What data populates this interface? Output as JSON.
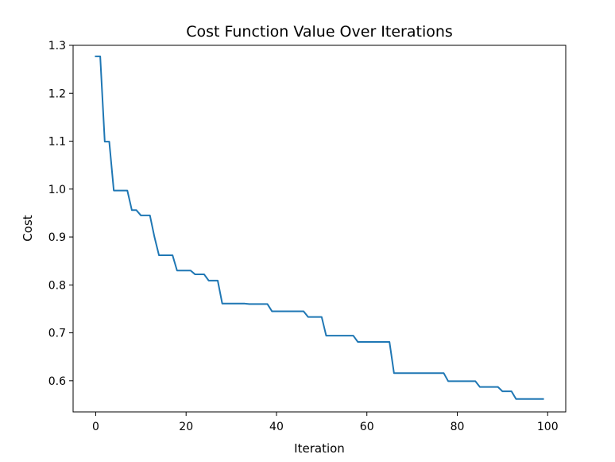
{
  "chart_data": {
    "type": "line",
    "title": "Cost Function Value Over Iterations",
    "xlabel": "Iteration",
    "ylabel": "Cost",
    "xlim": [
      -5,
      104
    ],
    "ylim": [
      0.535,
      1.3
    ],
    "xticks": [
      0,
      20,
      40,
      60,
      80,
      100
    ],
    "yticks": [
      0.6,
      0.7,
      0.8,
      0.9,
      1.0,
      1.1,
      1.2,
      1.3
    ],
    "ytick_labels": [
      "0.6",
      "0.7",
      "0.8",
      "0.9",
      "1.0",
      "1.1",
      "1.2",
      "1.3"
    ],
    "grid": false,
    "series": [
      {
        "color": "#1f77b4",
        "x": [
          0,
          1,
          2,
          3,
          4,
          5,
          6,
          7,
          8,
          9,
          10,
          11,
          12,
          13,
          14,
          15,
          16,
          17,
          18,
          19,
          20,
          21,
          22,
          23,
          24,
          25,
          26,
          27,
          28,
          29,
          30,
          31,
          32,
          33,
          34,
          35,
          36,
          37,
          38,
          39,
          40,
          41,
          42,
          43,
          44,
          45,
          46,
          47,
          48,
          49,
          50,
          51,
          52,
          53,
          54,
          55,
          56,
          57,
          58,
          59,
          60,
          61,
          62,
          63,
          64,
          65,
          66,
          67,
          68,
          69,
          70,
          71,
          72,
          73,
          74,
          75,
          76,
          77,
          78,
          79,
          80,
          81,
          82,
          83,
          84,
          85,
          86,
          87,
          88,
          89,
          90,
          91,
          92,
          93,
          94,
          95,
          96,
          97,
          98,
          99
        ],
        "values": [
          1.277,
          1.277,
          1.099,
          1.099,
          0.997,
          0.997,
          0.997,
          0.997,
          0.956,
          0.956,
          0.945,
          0.945,
          0.945,
          0.9,
          0.862,
          0.862,
          0.862,
          0.862,
          0.83,
          0.83,
          0.83,
          0.83,
          0.822,
          0.822,
          0.822,
          0.809,
          0.809,
          0.809,
          0.761,
          0.761,
          0.761,
          0.761,
          0.761,
          0.761,
          0.76,
          0.76,
          0.76,
          0.76,
          0.76,
          0.745,
          0.745,
          0.745,
          0.745,
          0.745,
          0.745,
          0.745,
          0.745,
          0.733,
          0.733,
          0.733,
          0.733,
          0.694,
          0.694,
          0.694,
          0.694,
          0.694,
          0.694,
          0.694,
          0.681,
          0.681,
          0.681,
          0.681,
          0.681,
          0.681,
          0.681,
          0.681,
          0.616,
          0.616,
          0.616,
          0.616,
          0.616,
          0.616,
          0.616,
          0.616,
          0.616,
          0.616,
          0.616,
          0.616,
          0.599,
          0.599,
          0.599,
          0.599,
          0.599,
          0.599,
          0.599,
          0.587,
          0.587,
          0.587,
          0.587,
          0.587,
          0.578,
          0.578,
          0.578,
          0.562,
          0.562,
          0.562,
          0.562,
          0.562,
          0.562,
          0.562
        ]
      }
    ]
  }
}
